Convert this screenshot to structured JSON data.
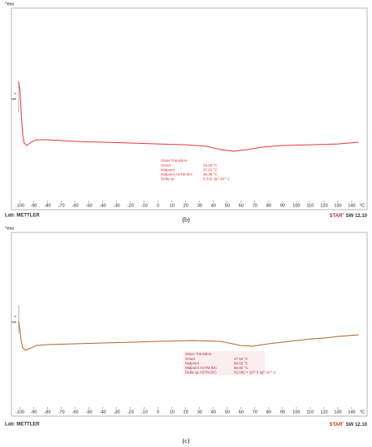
{
  "chart_data": [
    {
      "type": "line",
      "caption": "(b)",
      "exo_label": "^exo",
      "footer_left": "Lab: METTLER",
      "footer_brand": "STAR",
      "footer_brand_sup": "e",
      "footer_version": "SW 12.10",
      "x_unit": "°C",
      "scale_bar": {
        "value": 2,
        "label": "mW"
      },
      "x": [
        -101,
        -100,
        -99,
        -98,
        -97,
        -95,
        -92,
        -88,
        -80,
        -60,
        -40,
        -20,
        0,
        20,
        35,
        45,
        55,
        65,
        75,
        90,
        110,
        130,
        145
      ],
      "values": [
        0.28,
        -0.24,
        -1.82,
        -3.13,
        -3.7,
        -3.86,
        -3.65,
        -3.49,
        -3.49,
        -3.6,
        -3.65,
        -3.7,
        -3.76,
        -3.81,
        -3.91,
        -4.12,
        -4.23,
        -4.12,
        -3.97,
        -3.86,
        -3.81,
        -3.76,
        -3.65
      ],
      "color": "#e8343a",
      "xlim": [
        -105,
        150
      ],
      "ylim": [
        -8,
        5
      ],
      "xticks": [
        -100,
        -90,
        -80,
        -70,
        -60,
        -50,
        -40,
        -30,
        -20,
        -10,
        0,
        10,
        20,
        30,
        40,
        50,
        60,
        70,
        80,
        90,
        100,
        110,
        120,
        130,
        140
      ],
      "annotation": {
        "title": "Glass Transition",
        "rows": [
          [
            "Onset",
            "23.00 °C"
          ],
          [
            "Midpoint",
            "37.63 °C"
          ],
          [
            "Midpoint ASTM,IEC",
            "36.38 °C"
          ],
          [
            "Delta cp",
            "0.316 Jg^-1K^-1"
          ]
        ]
      }
    },
    {
      "type": "line",
      "caption": "(c)",
      "exo_label": "^exo",
      "footer_left": "Lab: METTLER",
      "footer_brand": "STAR",
      "footer_brand_sup": "e",
      "footer_version": "SW 12.10",
      "x_unit": "°C",
      "scale_bar": {
        "value": 2,
        "label": "mW"
      },
      "x": [
        -101,
        -100,
        -99,
        -98,
        -96,
        -92,
        -88,
        -80,
        -60,
        -40,
        -20,
        0,
        25,
        45,
        60,
        68,
        80,
        100,
        110,
        120,
        130,
        145
      ],
      "values": [
        -1.27,
        -1.85,
        -2.71,
        -3.17,
        -3.34,
        -3.17,
        -3.0,
        -2.94,
        -2.88,
        -2.82,
        -2.77,
        -2.71,
        -2.65,
        -2.71,
        -3.0,
        -3.05,
        -2.88,
        -2.65,
        -2.54,
        -2.48,
        -2.36,
        -2.25
      ],
      "color": "#b0622a",
      "xlim": [
        -105,
        150
      ],
      "ylim": [
        -8,
        5
      ],
      "xticks": [
        -100,
        -90,
        -80,
        -70,
        -60,
        -50,
        -40,
        -30,
        -20,
        -10,
        0,
        10,
        20,
        30,
        40,
        50,
        60,
        70,
        80,
        90,
        100,
        110,
        120,
        130,
        140
      ],
      "annotation": {
        "title": "Glass Transition",
        "rows": [
          [
            "Onset",
            "47.53 °C"
          ],
          [
            "Midpoint",
            "60.02 °C"
          ],
          [
            "Midpoint ASTM,IEC",
            "56.92 °C"
          ],
          [
            "Delta cp ASTM,IEC",
            "62.082 × 10^-3 Jg^-1K^-1"
          ]
        ]
      }
    }
  ]
}
